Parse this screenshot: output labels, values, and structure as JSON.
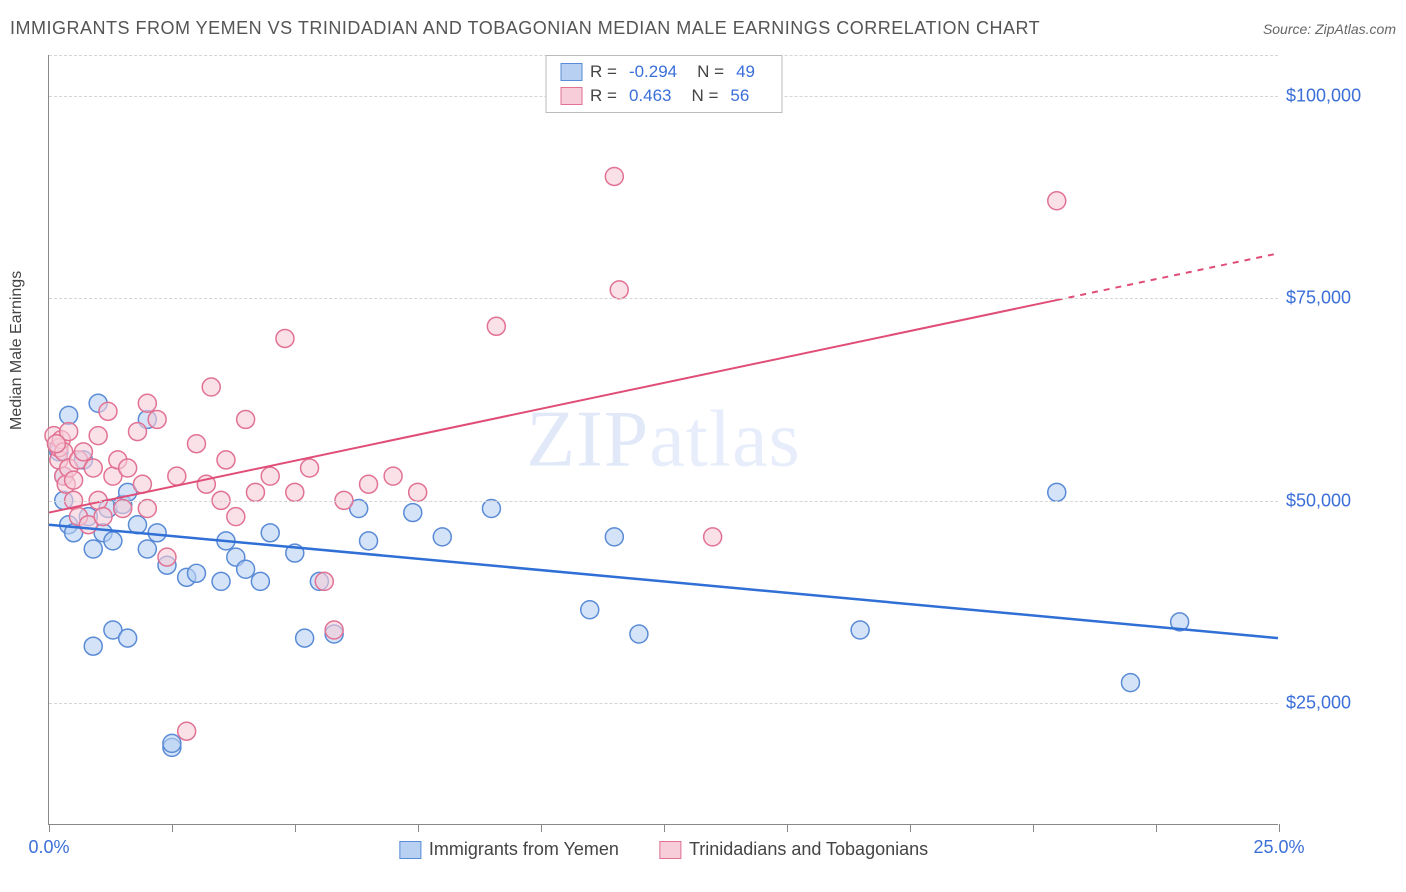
{
  "title": "IMMIGRANTS FROM YEMEN VS TRINIDADIAN AND TOBAGONIAN MEDIAN MALE EARNINGS CORRELATION CHART",
  "source_prefix": "Source: ",
  "source": "ZipAtlas.com",
  "y_axis_label": "Median Male Earnings",
  "watermark": "ZIPatlas",
  "chart": {
    "type": "scatter",
    "xlim": [
      0,
      25
    ],
    "ylim": [
      10000,
      105000
    ],
    "x_ticks": [
      0,
      2.5,
      5,
      7.5,
      10,
      12.5,
      15,
      17.5,
      20,
      22.5,
      25
    ],
    "x_tick_labels": {
      "0": "0.0%",
      "25": "25.0%"
    },
    "y_gridlines": [
      25000,
      50000,
      75000,
      100000
    ],
    "y_tick_labels": {
      "25000": "$25,000",
      "50000": "$50,000",
      "75000": "$75,000",
      "100000": "$100,000"
    },
    "background_color": "#ffffff",
    "grid_color": "#d5d5d5",
    "axis_color": "#888888",
    "marker_radius": 9,
    "marker_stroke_width": 1.5,
    "series": [
      {
        "name": "Immigrants from Yemen",
        "fill": "#b8d0f2",
        "stroke": "#5a8bd6",
        "fill_opacity": 0.6,
        "R": "-0.294",
        "N": "49",
        "trend": {
          "x1": 0,
          "y1": 47000,
          "x2": 25,
          "y2": 33000,
          "color": "#2f6fd6",
          "width": 2.5,
          "dash_from_x": null
        },
        "points": [
          [
            0.2,
            56000
          ],
          [
            0.3,
            50000
          ],
          [
            0.3,
            53000
          ],
          [
            0.4,
            47000
          ],
          [
            0.4,
            60500
          ],
          [
            0.5,
            46000
          ],
          [
            0.7,
            55000
          ],
          [
            0.8,
            48000
          ],
          [
            0.9,
            44000
          ],
          [
            0.9,
            32000
          ],
          [
            1.0,
            62000
          ],
          [
            1.1,
            46000
          ],
          [
            1.2,
            49000
          ],
          [
            1.3,
            45000
          ],
          [
            1.3,
            34000
          ],
          [
            1.5,
            49500
          ],
          [
            1.6,
            51000
          ],
          [
            1.6,
            33000
          ],
          [
            1.8,
            47000
          ],
          [
            2.0,
            44000
          ],
          [
            2.0,
            60000
          ],
          [
            2.2,
            46000
          ],
          [
            2.4,
            42000
          ],
          [
            2.5,
            19500
          ],
          [
            2.5,
            20000
          ],
          [
            2.8,
            40500
          ],
          [
            3.0,
            41000
          ],
          [
            3.5,
            40000
          ],
          [
            3.6,
            45000
          ],
          [
            3.8,
            43000
          ],
          [
            4.0,
            41500
          ],
          [
            4.3,
            40000
          ],
          [
            4.5,
            46000
          ],
          [
            5.0,
            43500
          ],
          [
            5.2,
            33000
          ],
          [
            5.5,
            40000
          ],
          [
            5.8,
            33500
          ],
          [
            6.3,
            49000
          ],
          [
            6.5,
            45000
          ],
          [
            7.4,
            48500
          ],
          [
            8.0,
            45500
          ],
          [
            9.0,
            49000
          ],
          [
            11.0,
            36500
          ],
          [
            11.5,
            45500
          ],
          [
            12.0,
            33500
          ],
          [
            16.5,
            34000
          ],
          [
            20.5,
            51000
          ],
          [
            22.0,
            27500
          ],
          [
            23.0,
            35000
          ]
        ]
      },
      {
        "name": "Trinidadians and Tobagonians",
        "fill": "#f7cdd9",
        "stroke": "#e17294",
        "fill_opacity": 0.6,
        "R": " 0.463",
        "N": "56",
        "trend": {
          "x1": 0,
          "y1": 48500,
          "x2": 25,
          "y2": 80500,
          "color": "#e04d77",
          "width": 2,
          "dash_from_x": 20.5
        },
        "points": [
          [
            0.1,
            58000
          ],
          [
            0.2,
            55000
          ],
          [
            0.2,
            56500
          ],
          [
            0.25,
            57500
          ],
          [
            0.3,
            53000
          ],
          [
            0.3,
            56000
          ],
          [
            0.35,
            52000
          ],
          [
            0.4,
            58500
          ],
          [
            0.4,
            54000
          ],
          [
            0.5,
            52500
          ],
          [
            0.5,
            50000
          ],
          [
            0.6,
            55000
          ],
          [
            0.6,
            48000
          ],
          [
            0.7,
            56000
          ],
          [
            0.8,
            47000
          ],
          [
            0.9,
            54000
          ],
          [
            1.0,
            50000
          ],
          [
            1.0,
            58000
          ],
          [
            1.1,
            48000
          ],
          [
            1.2,
            61000
          ],
          [
            1.3,
            53000
          ],
          [
            1.4,
            55000
          ],
          [
            1.5,
            49000
          ],
          [
            1.6,
            54000
          ],
          [
            1.8,
            58500
          ],
          [
            1.9,
            52000
          ],
          [
            2.0,
            49000
          ],
          [
            2.0,
            62000
          ],
          [
            2.2,
            60000
          ],
          [
            2.4,
            43000
          ],
          [
            2.6,
            53000
          ],
          [
            2.8,
            21500
          ],
          [
            3.0,
            57000
          ],
          [
            3.2,
            52000
          ],
          [
            3.3,
            64000
          ],
          [
            3.5,
            50000
          ],
          [
            3.6,
            55000
          ],
          [
            3.8,
            48000
          ],
          [
            4.0,
            60000
          ],
          [
            4.2,
            51000
          ],
          [
            4.5,
            53000
          ],
          [
            4.8,
            70000
          ],
          [
            5.0,
            51000
          ],
          [
            5.3,
            54000
          ],
          [
            5.6,
            40000
          ],
          [
            5.8,
            34000
          ],
          [
            6.0,
            50000
          ],
          [
            6.5,
            52000
          ],
          [
            7.0,
            53000
          ],
          [
            7.5,
            51000
          ],
          [
            9.1,
            71500
          ],
          [
            11.5,
            90000
          ],
          [
            11.6,
            76000
          ],
          [
            13.5,
            45500
          ],
          [
            20.5,
            87000
          ],
          [
            0.15,
            57000
          ]
        ]
      }
    ]
  },
  "legend_top_labels": {
    "R": "R =",
    "N": "N ="
  },
  "legend_bottom": [
    {
      "label": "Immigrants from Yemen",
      "series": 0
    },
    {
      "label": "Trinidadians and Tobagonians",
      "series": 1
    }
  ]
}
